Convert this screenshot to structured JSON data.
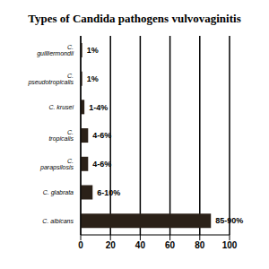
{
  "chart_data": {
    "type": "bar",
    "title": "Types of Candida pathogens vulvovaginitis",
    "orientation": "horizontal",
    "categories": [
      "C. guilliermondii",
      "C. pseudotropicalis",
      "C. krusei",
      "C. tropicalis",
      "C. parapsilosis",
      "C. glabrata",
      "C. albicans"
    ],
    "values": [
      1,
      1,
      2.5,
      5,
      5,
      8,
      87.5
    ],
    "value_labels": [
      "1%",
      "1%",
      "1-4%",
      "4-6%",
      "4-6%",
      "6-10%",
      "85-90%"
    ],
    "data_labels": true,
    "color": "#2b2118",
    "xlim": [
      0,
      100
    ],
    "xticks": [
      0,
      20,
      40,
      60,
      80,
      100
    ],
    "grid": true
  }
}
